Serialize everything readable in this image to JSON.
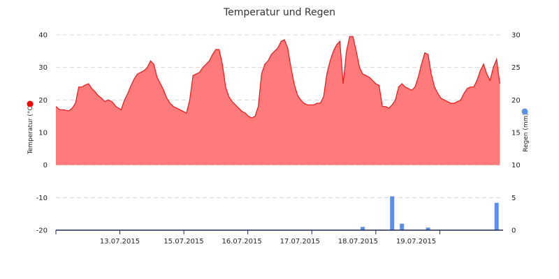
{
  "chart_data": {
    "type": "area",
    "title": "Temperatur und Regen",
    "x_tick_labels": [
      "13.07.2015",
      "15.07.2015",
      "16.07.2015",
      "17.07.2015",
      "18.07.2015",
      "19.07.2015"
    ],
    "y_left": {
      "label": "Temperatur (°C)",
      "range": [
        -20,
        40
      ],
      "ticks": [
        40,
        30,
        20,
        10,
        0,
        -10,
        -20
      ],
      "legend_color": "#ff0000"
    },
    "y_right": {
      "label": "Regen (mm)",
      "range": [
        0,
        30
      ],
      "ticks": [
        30,
        25,
        20,
        15,
        10,
        5,
        0
      ],
      "legend_color": "#5b8fe8"
    },
    "grid": true,
    "series": [
      {
        "name": "Temperatur",
        "type": "area",
        "axis": "left",
        "color": "#ff7a7a",
        "line_color": "#e81818",
        "x": [
          0,
          0.06,
          0.12,
          0.16,
          0.2,
          0.25,
          0.3,
          0.35,
          0.4,
          0.44,
          0.5,
          0.55,
          0.6,
          0.64,
          0.7,
          0.75,
          0.8,
          0.86,
          0.92,
          1.0,
          1.05,
          1.1,
          1.14,
          1.2,
          1.25,
          1.3,
          1.35,
          1.4,
          1.45,
          1.5,
          1.55,
          1.6,
          1.65,
          1.7,
          1.75,
          1.8,
          1.85,
          1.9,
          1.95,
          2.0,
          2.05,
          2.1,
          2.15,
          2.2,
          2.25,
          2.3,
          2.35,
          2.4,
          2.45,
          2.5,
          2.55,
          2.6,
          2.65,
          2.7,
          2.75,
          2.8,
          2.85,
          2.9,
          2.95,
          3.0,
          3.05,
          3.1,
          3.15,
          3.2,
          3.25,
          3.3,
          3.35,
          3.4,
          3.45,
          3.5,
          3.55,
          3.6,
          3.65,
          3.7,
          3.75,
          3.8,
          3.85,
          3.9,
          3.95,
          4.0,
          4.05,
          4.1,
          4.15,
          4.2,
          4.25,
          4.3,
          4.35,
          4.4,
          4.45,
          4.5,
          4.55,
          4.6,
          4.65,
          4.7,
          4.75,
          4.8,
          4.85,
          4.9,
          4.95,
          5.0,
          5.05,
          5.1,
          5.15,
          5.2,
          5.25,
          5.3,
          5.35,
          5.4,
          5.45,
          5.5,
          5.55,
          5.6,
          5.65,
          5.7,
          5.75,
          5.8,
          5.85,
          5.9,
          5.95,
          6.0,
          6.05,
          6.1,
          6.15,
          6.2,
          6.25,
          6.3,
          6.35,
          6.4,
          6.45,
          6.5,
          6.55,
          6.6,
          6.65,
          6.7,
          6.75,
          6.8
        ],
        "y": [
          18,
          17,
          17,
          16.8,
          16.7,
          17.5,
          19,
          24,
          24,
          24.5,
          25,
          23.5,
          22.5,
          21.5,
          20.5,
          19.5,
          20,
          19.5,
          18,
          17,
          20,
          22,
          24,
          26.5,
          28,
          28.5,
          29,
          30,
          32,
          31,
          27,
          25,
          23,
          20.5,
          19,
          18,
          17.5,
          17,
          16.5,
          16,
          20,
          27.5,
          28,
          28.5,
          30,
          31,
          32,
          34,
          35.5,
          35.5,
          31,
          24,
          21,
          19.5,
          18.5,
          17.5,
          16.5,
          16,
          15,
          14.5,
          15,
          18,
          28,
          31,
          32,
          34,
          35,
          36,
          38,
          38.5,
          36,
          30,
          25,
          21.5,
          20,
          19,
          18.5,
          18.5,
          18.5,
          19,
          19,
          21,
          28,
          32,
          35,
          37,
          38,
          25,
          35,
          39.5,
          39.5,
          35,
          30,
          28,
          27.5,
          27,
          26,
          25,
          24.5,
          18,
          18,
          17.5,
          18.5,
          20,
          24,
          25,
          24,
          23.5,
          23,
          24,
          27,
          31,
          34.5,
          34,
          28,
          24,
          22,
          20.5,
          20,
          19.5,
          19,
          19,
          19.5,
          20,
          22,
          23.5,
          24,
          24,
          26,
          29,
          31,
          28,
          26,
          30,
          32.5,
          25
        ]
      },
      {
        "name": "Regen",
        "type": "bar",
        "axis": "right",
        "color": "#5b8fe8",
        "x": [
          4.7,
          5.15,
          5.3,
          5.7,
          6.75
        ],
        "y": [
          0.5,
          5.2,
          1.0,
          0.4,
          4.2
        ]
      }
    ]
  }
}
